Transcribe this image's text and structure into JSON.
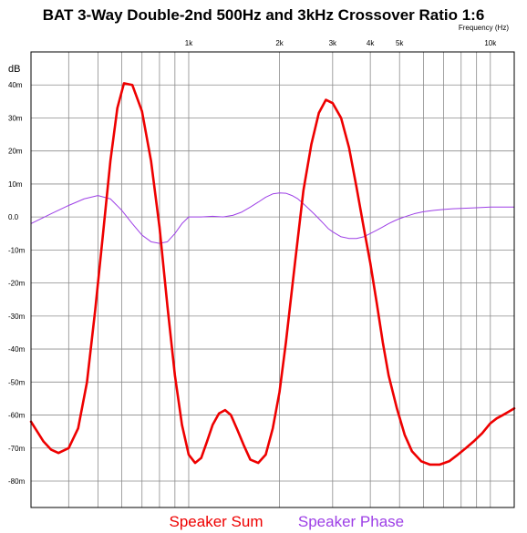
{
  "chart_data": {
    "type": "line",
    "title": "BAT 3-Way Double-2nd 500Hz and 3kHz Crossover Ratio 1:6",
    "xlabel": "Frequency  (Hz)",
    "ylabel": "dB",
    "x_scale": "log",
    "xlim": [
      300,
      12000
    ],
    "ylim": [
      -88,
      50
    ],
    "grid": true,
    "x_ticks": [
      {
        "value": 1000,
        "label": "1k"
      },
      {
        "value": 2000,
        "label": "2k"
      },
      {
        "value": 3000,
        "label": "3k"
      },
      {
        "value": 4000,
        "label": "4k"
      },
      {
        "value": 5000,
        "label": "5k"
      },
      {
        "value": 10000,
        "label": "10k"
      }
    ],
    "y_ticks": [
      {
        "value": 40,
        "label": "40m"
      },
      {
        "value": 30,
        "label": "30m"
      },
      {
        "value": 20,
        "label": "20m"
      },
      {
        "value": 10,
        "label": "10m"
      },
      {
        "value": 0,
        "label": "0.0"
      },
      {
        "value": -10,
        "label": "-10m"
      },
      {
        "value": -20,
        "label": "-20m"
      },
      {
        "value": -30,
        "label": "-30m"
      },
      {
        "value": -40,
        "label": "-40m"
      },
      {
        "value": -50,
        "label": "-50m"
      },
      {
        "value": -60,
        "label": "-60m"
      },
      {
        "value": -70,
        "label": "-70m"
      },
      {
        "value": -80,
        "label": "-80m"
      }
    ],
    "series": [
      {
        "name": "Speaker Sum",
        "color": "#ee0000",
        "x": [
          300,
          330,
          350,
          370,
          400,
          430,
          460,
          490,
          520,
          550,
          580,
          610,
          650,
          700,
          750,
          800,
          850,
          900,
          950,
          1000,
          1050,
          1100,
          1150,
          1200,
          1260,
          1320,
          1380,
          1450,
          1520,
          1600,
          1700,
          1800,
          1900,
          2000,
          2100,
          2250,
          2400,
          2550,
          2700,
          2850,
          3000,
          3200,
          3400,
          3600,
          3800,
          4000,
          4200,
          4400,
          4600,
          4900,
          5200,
          5500,
          5900,
          6300,
          6800,
          7300,
          7800,
          8300,
          8800,
          9400,
          10000,
          10500,
          11000,
          11500,
          12000
        ],
        "y": [
          -62,
          -68,
          -70.5,
          -71.5,
          -70,
          -64,
          -50,
          -28,
          -5,
          17,
          33,
          40.5,
          40,
          32,
          17,
          -3,
          -27,
          -48,
          -63,
          -72,
          -74.5,
          -73,
          -68,
          -63,
          -59.5,
          -58.5,
          -60,
          -64.5,
          -69,
          -73.5,
          -74.5,
          -72,
          -64,
          -53,
          -38,
          -14,
          8,
          22,
          31.5,
          35.5,
          34.5,
          30,
          21,
          9,
          -3,
          -14,
          -26,
          -38,
          -48,
          -58,
          -66,
          -71,
          -74,
          -75,
          -75,
          -74,
          -72,
          -70,
          -68,
          -65.5,
          -62.5,
          -61,
          -60,
          -59,
          -58
        ]
      },
      {
        "name": "Speaker Phase",
        "color": "#9d3fe6",
        "x": [
          300,
          350,
          400,
          450,
          500,
          550,
          600,
          650,
          700,
          750,
          800,
          850,
          900,
          950,
          1000,
          1100,
          1200,
          1300,
          1400,
          1500,
          1600,
          1700,
          1800,
          1900,
          2000,
          2100,
          2200,
          2300,
          2400,
          2500,
          2600,
          2700,
          2800,
          2900,
          3000,
          3200,
          3400,
          3600,
          3800,
          4000,
          4200,
          4400,
          4600,
          4800,
          5000,
          5300,
          5600,
          6000,
          6500,
          7000,
          7500,
          8000,
          8500,
          9000,
          9500,
          10000,
          10500,
          11000,
          11500,
          12000
        ],
        "y": [
          -2,
          1,
          3.5,
          5.5,
          6.5,
          5.5,
          2,
          -2,
          -5.5,
          -7.5,
          -8,
          -7.5,
          -5,
          -2,
          0,
          0,
          0.2,
          0,
          0.5,
          1.5,
          3,
          4.5,
          6,
          7,
          7.3,
          7.2,
          6.5,
          5.5,
          4,
          2.5,
          1,
          -0.5,
          -2,
          -3.5,
          -4.5,
          -6,
          -6.5,
          -6.5,
          -6,
          -5,
          -4,
          -3,
          -2,
          -1.2,
          -0.5,
          0.3,
          1,
          1.6,
          2,
          2.3,
          2.5,
          2.6,
          2.7,
          2.8,
          2.9,
          3,
          3,
          3,
          3,
          3
        ]
      }
    ]
  }
}
